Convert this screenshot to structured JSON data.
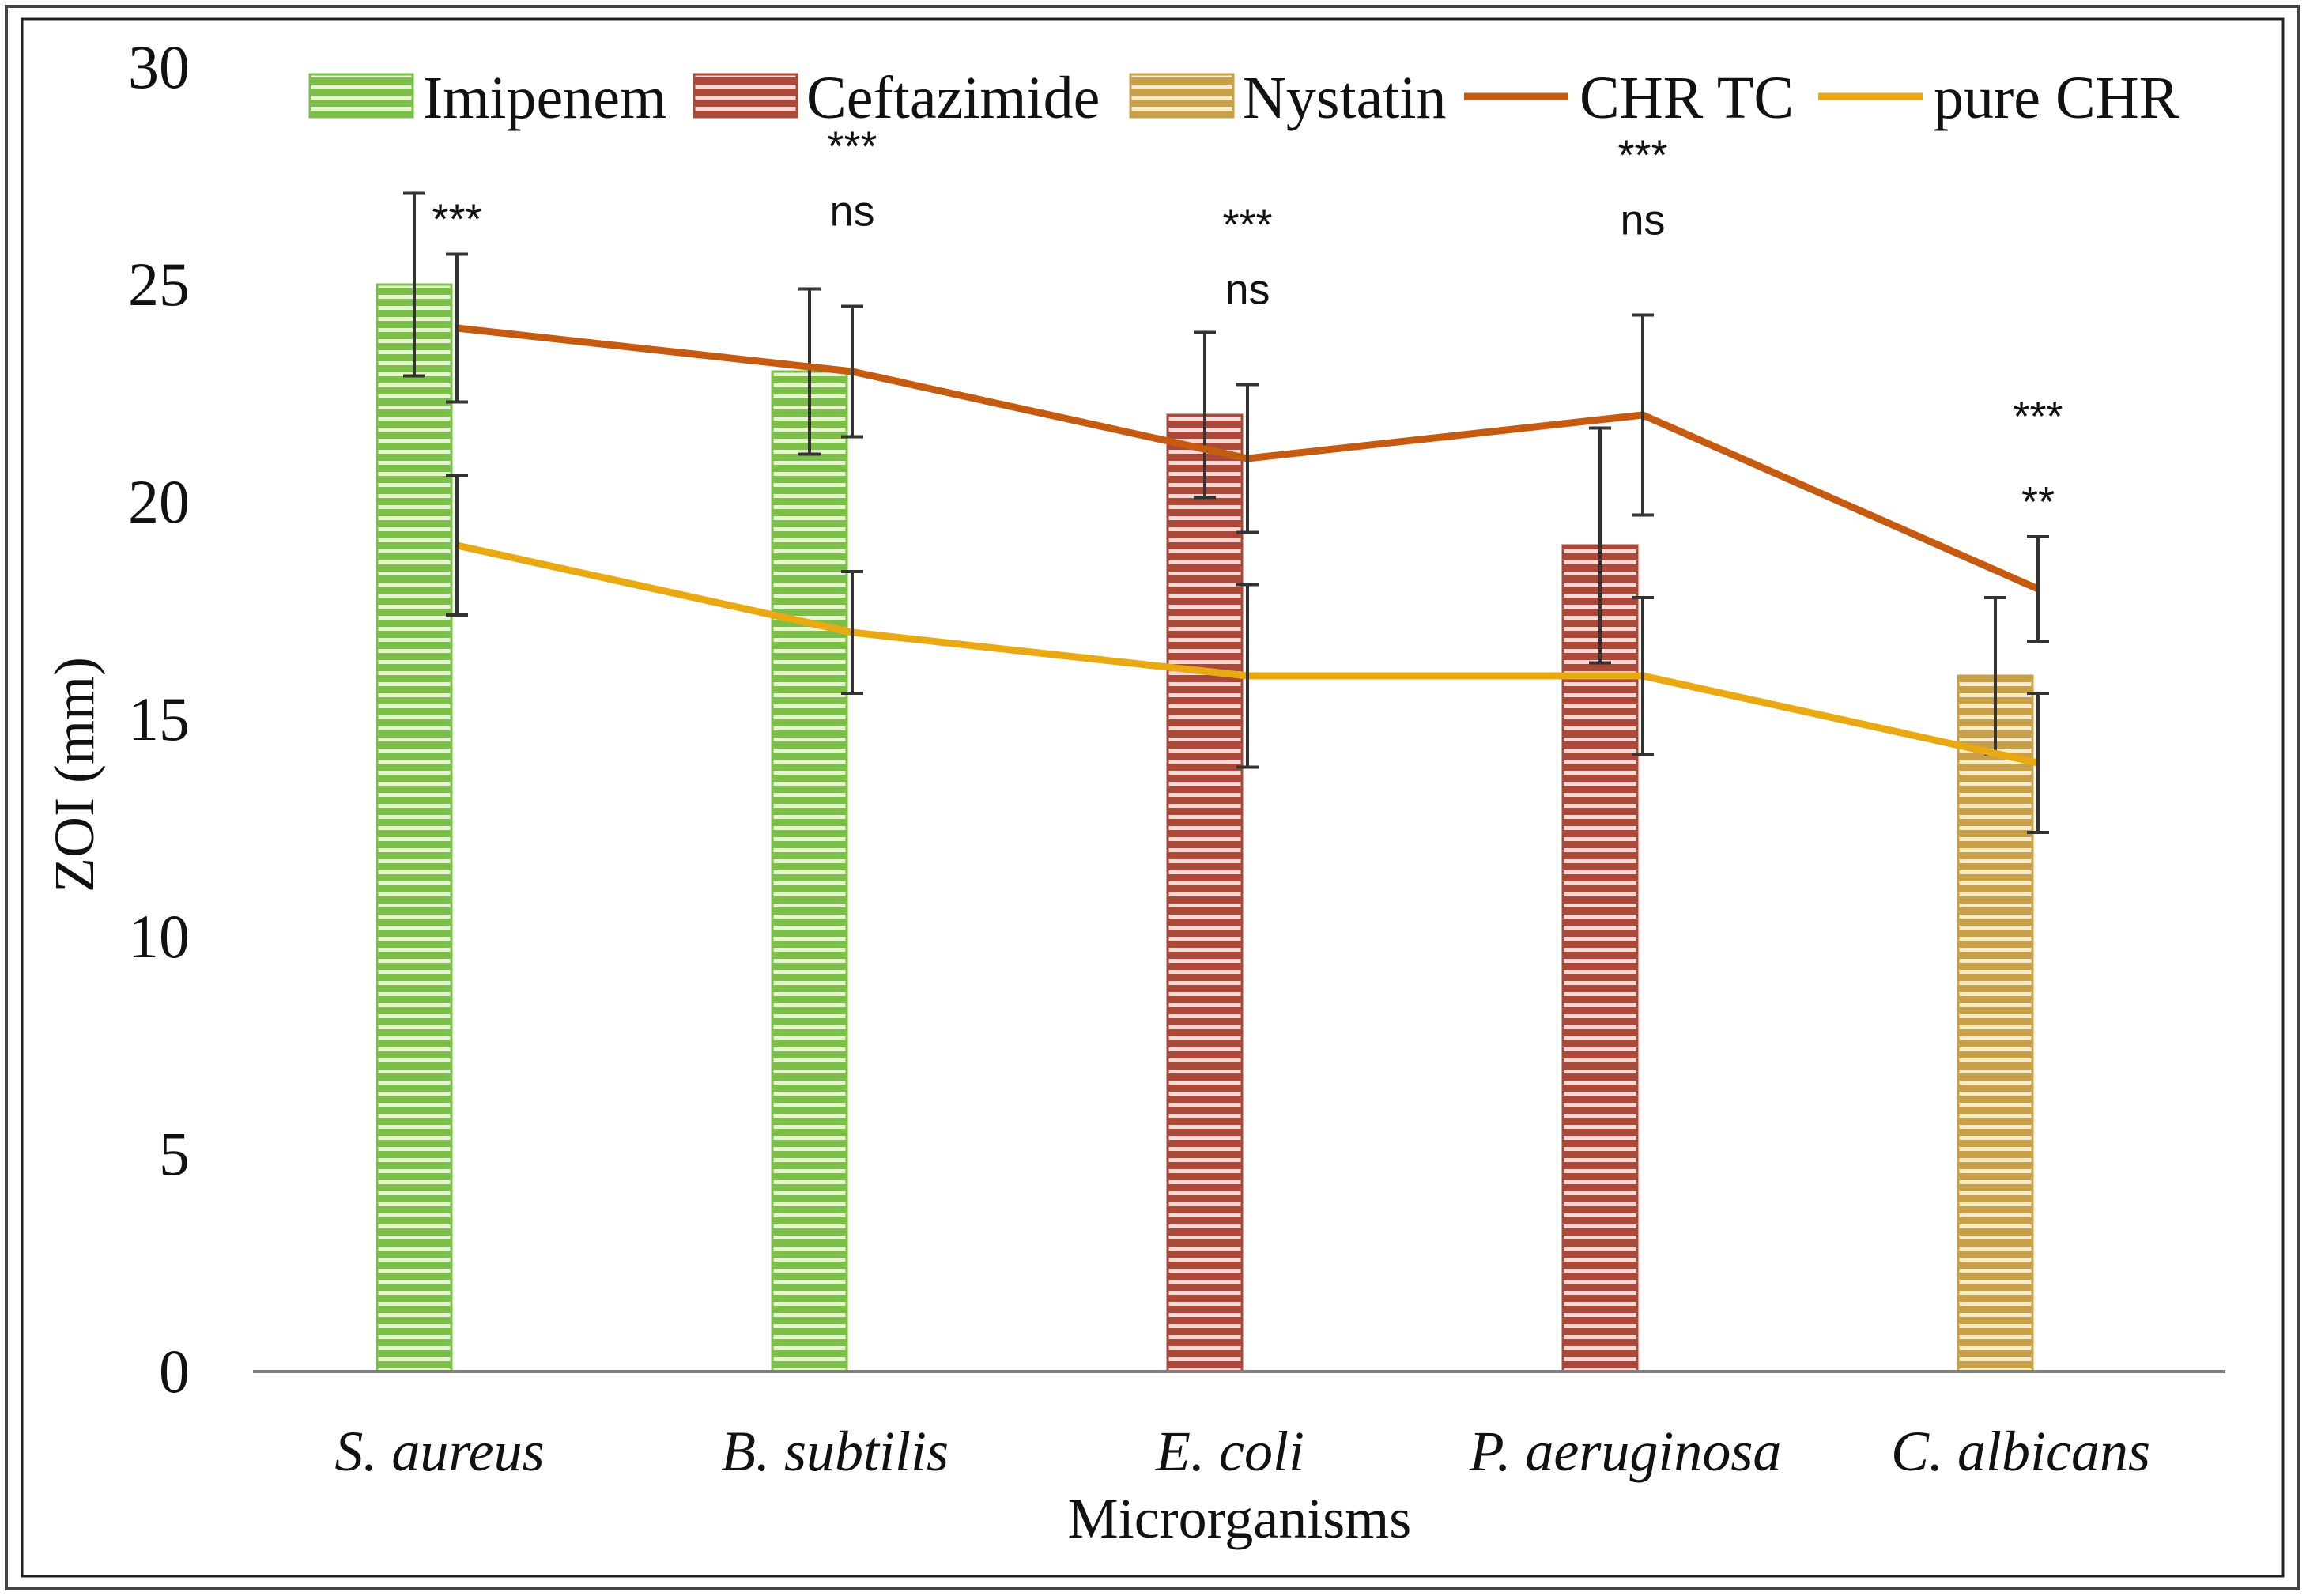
{
  "chart_data": {
    "type": "bar",
    "title": "",
    "xlabel": "Microrganisms",
    "ylabel": "ZOI (mm)",
    "ylim": [
      0,
      30
    ],
    "yticks": [
      0,
      5,
      10,
      15,
      20,
      25,
      30
    ],
    "grid": false,
    "legend_position": "top",
    "categories": [
      "S. aureus",
      "B. subtilis",
      "E. coli",
      "P. aeruginosa",
      "C. albicans"
    ],
    "bar_series": [
      {
        "name": "Imipenem",
        "color": "#7bbf4a",
        "stripe": "#e6f3d9",
        "values": [
          25,
          23,
          null,
          null,
          null
        ],
        "errors": [
          2.1,
          1.9,
          null,
          null,
          null
        ]
      },
      {
        "name": "Ceftazimide",
        "color": "#a9493a",
        "stripe": "#f2dcd6",
        "values": [
          null,
          null,
          22,
          19,
          null
        ],
        "errors": [
          null,
          null,
          1.9,
          2.7,
          null
        ]
      },
      {
        "name": "Nystatin",
        "color": "#c9a04a",
        "stripe": "#f6ead0",
        "values": [
          null,
          null,
          null,
          null,
          16
        ],
        "errors": [
          null,
          null,
          null,
          null,
          1.8
        ]
      }
    ],
    "line_series": [
      {
        "name": "CHR TC",
        "color": "#c55a11",
        "values": [
          24,
          23,
          21,
          22,
          18
        ],
        "errors": [
          1.7,
          1.5,
          1.7,
          2.3,
          1.2
        ]
      },
      {
        "name": "pure CHR",
        "color": "#e8a912",
        "values": [
          19,
          17,
          16,
          16,
          14
        ],
        "errors": [
          1.6,
          1.4,
          2.1,
          1.8,
          1.6
        ]
      }
    ],
    "significance": [
      {
        "category": "S. aureus",
        "labels": [
          "***"
        ]
      },
      {
        "category": "B. subtilis",
        "labels": [
          "***",
          "ns"
        ]
      },
      {
        "category": "E. coli",
        "labels": [
          "***",
          "ns"
        ]
      },
      {
        "category": "P. aeruginosa",
        "labels": [
          "***",
          "ns"
        ]
      },
      {
        "category": "C. albicans",
        "labels": [
          "***",
          "**"
        ]
      }
    ],
    "colors": {
      "frame": "#000000",
      "axis": "#7f7f7f",
      "error_bar": "#333333"
    }
  }
}
